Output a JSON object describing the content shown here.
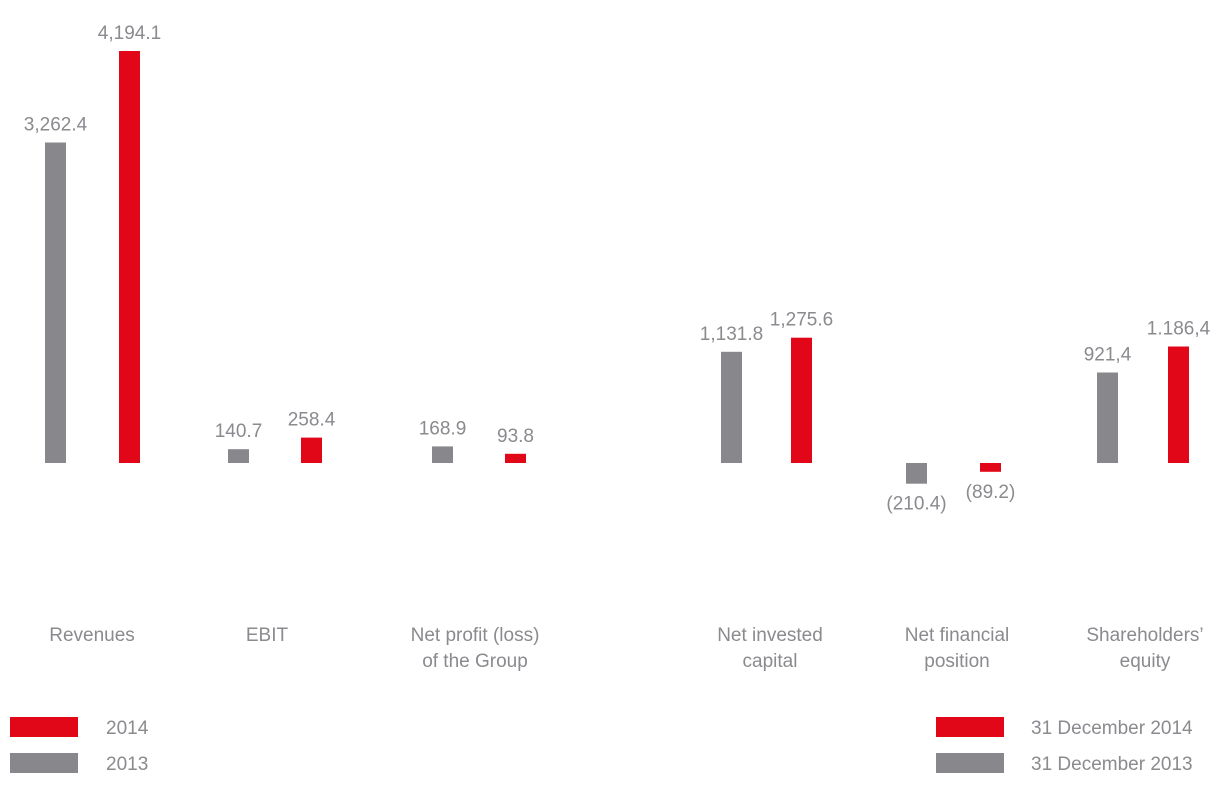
{
  "colors": {
    "current": "#e10718",
    "prior": "#87878c",
    "text": "#8a8a8f"
  },
  "chart_data": [
    {
      "type": "bar",
      "panel": "left",
      "categories": [
        [
          "Revenues"
        ],
        [
          "EBIT"
        ],
        [
          "Net profit (loss)",
          "of the Group"
        ]
      ],
      "series": [
        {
          "name": "2013",
          "color": "#87878c",
          "values": [
            3262.4,
            140.7,
            168.9
          ],
          "labels": [
            "3,262.4",
            "140.7",
            "168.9"
          ]
        },
        {
          "name": "2014",
          "color": "#e10718",
          "values": [
            4194.1,
            258.4,
            93.8
          ],
          "labels": [
            "4,194.1",
            "258.4",
            "93.8"
          ]
        }
      ],
      "legend": {
        "placement": "bottom-left",
        "entries": [
          "2014",
          "2013"
        ]
      }
    },
    {
      "type": "bar",
      "panel": "right",
      "categories": [
        [
          "Net invested",
          "capital"
        ],
        [
          "Net financial",
          "position"
        ],
        [
          "Shareholders’",
          "equity"
        ]
      ],
      "series": [
        {
          "name": "31 December 2013",
          "color": "#87878c",
          "values": [
            1131.8,
            -210.4,
            921.4
          ],
          "labels": [
            "1,131.8",
            "(210.4)",
            "921,4"
          ]
        },
        {
          "name": "31 December 2014",
          "color": "#e10718",
          "values": [
            1275.6,
            -89.2,
            1186.4
          ],
          "labels": [
            "1,275.6",
            "(89.2)",
            "1.186,4"
          ]
        }
      ],
      "legend": {
        "placement": "bottom-right",
        "entries": [
          "31 December 2014",
          "31 December 2013"
        ]
      }
    }
  ]
}
